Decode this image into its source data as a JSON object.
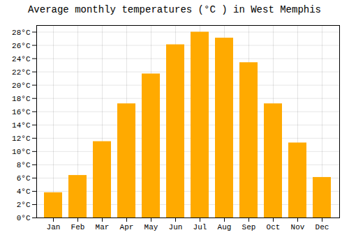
{
  "chart_data": {
    "type": "bar",
    "title": "Average monthly temperatures (°C ) in West Memphis",
    "categories": [
      "Jan",
      "Feb",
      "Mar",
      "Apr",
      "May",
      "Jun",
      "Jul",
      "Aug",
      "Sep",
      "Oct",
      "Nov",
      "Dec"
    ],
    "values": [
      3.8,
      6.4,
      11.5,
      17.2,
      21.7,
      26.1,
      28.0,
      27.1,
      23.4,
      17.2,
      11.3,
      6.1
    ],
    "color": "#FFAA00",
    "ylim": [
      0,
      29
    ],
    "yticks": [
      {
        "value": 0,
        "label": "0°C"
      },
      {
        "value": 2,
        "label": "2°C"
      },
      {
        "value": 4,
        "label": "4°C"
      },
      {
        "value": 6,
        "label": "6°C"
      },
      {
        "value": 8,
        "label": "8°C"
      },
      {
        "value": 10,
        "label": "10°C"
      },
      {
        "value": 12,
        "label": "12°C"
      },
      {
        "value": 14,
        "label": "14°C"
      },
      {
        "value": 16,
        "label": "16°C"
      },
      {
        "value": 18,
        "label": "18°C"
      },
      {
        "value": 20,
        "label": "20°C"
      },
      {
        "value": 22,
        "label": "22°C"
      },
      {
        "value": 24,
        "label": "24°C"
      },
      {
        "value": 26,
        "label": "26°C"
      },
      {
        "value": 28,
        "label": "28°C"
      }
    ],
    "grid": true
  }
}
